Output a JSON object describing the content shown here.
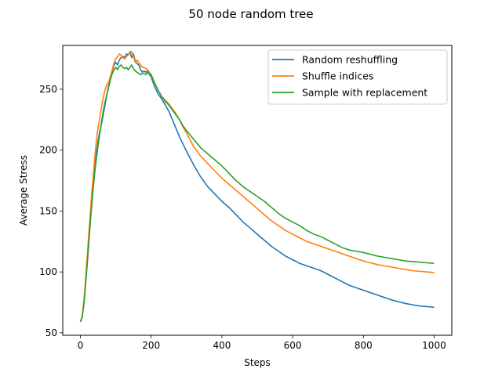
{
  "chart_data": {
    "type": "line",
    "title": "50 node random tree",
    "xlabel": "Steps",
    "ylabel": "Average Stress",
    "xlim": [
      -50,
      1050
    ],
    "ylim": [
      48,
      286
    ],
    "xticks": [
      0,
      200,
      400,
      600,
      800,
      1000
    ],
    "yticks": [
      50,
      100,
      150,
      200,
      250
    ],
    "grid": false,
    "legend_position": "top-right",
    "series": [
      {
        "name": "Random reshuffling",
        "color": "#1f77b4",
        "points": [
          [
            0,
            59
          ],
          [
            5,
            63
          ],
          [
            10,
            75
          ],
          [
            15,
            92
          ],
          [
            20,
            110
          ],
          [
            25,
            130
          ],
          [
            30,
            150
          ],
          [
            35,
            168
          ],
          [
            40,
            183
          ],
          [
            45,
            197
          ],
          [
            50,
            208
          ],
          [
            55,
            216
          ],
          [
            60,
            222
          ],
          [
            65,
            230
          ],
          [
            70,
            238
          ],
          [
            75,
            246
          ],
          [
            80,
            253
          ],
          [
            85,
            260
          ],
          [
            90,
            265
          ],
          [
            95,
            270
          ],
          [
            100,
            272
          ],
          [
            105,
            270
          ],
          [
            110,
            274
          ],
          [
            115,
            276
          ],
          [
            120,
            277
          ],
          [
            125,
            276
          ],
          [
            130,
            279
          ],
          [
            135,
            278
          ],
          [
            140,
            281
          ],
          [
            145,
            276
          ],
          [
            150,
            279
          ],
          [
            155,
            273
          ],
          [
            160,
            271
          ],
          [
            165,
            270
          ],
          [
            170,
            266
          ],
          [
            175,
            264
          ],
          [
            180,
            265
          ],
          [
            185,
            264
          ],
          [
            190,
            265
          ],
          [
            195,
            262
          ],
          [
            200,
            260
          ],
          [
            210,
            252
          ],
          [
            220,
            246
          ],
          [
            230,
            242
          ],
          [
            240,
            237
          ],
          [
            250,
            232
          ],
          [
            260,
            225
          ],
          [
            270,
            218
          ],
          [
            280,
            211
          ],
          [
            290,
            205
          ],
          [
            300,
            199
          ],
          [
            320,
            188
          ],
          [
            340,
            178
          ],
          [
            360,
            170
          ],
          [
            380,
            164
          ],
          [
            400,
            158
          ],
          [
            420,
            153
          ],
          [
            440,
            147
          ],
          [
            460,
            141
          ],
          [
            480,
            136
          ],
          [
            500,
            131
          ],
          [
            520,
            126
          ],
          [
            540,
            121
          ],
          [
            560,
            117
          ],
          [
            580,
            113
          ],
          [
            600,
            110
          ],
          [
            620,
            107
          ],
          [
            640,
            105
          ],
          [
            660,
            103
          ],
          [
            680,
            101
          ],
          [
            700,
            98
          ],
          [
            720,
            95
          ],
          [
            740,
            92
          ],
          [
            760,
            89
          ],
          [
            780,
            87
          ],
          [
            800,
            85
          ],
          [
            820,
            83
          ],
          [
            840,
            81
          ],
          [
            860,
            79
          ],
          [
            880,
            77
          ],
          [
            900,
            75.5
          ],
          [
            920,
            74
          ],
          [
            940,
            73
          ],
          [
            960,
            72
          ],
          [
            980,
            71.5
          ],
          [
            1000,
            71
          ]
        ]
      },
      {
        "name": "Shuffle indices",
        "color": "#ff7f0e",
        "points": [
          [
            0,
            59
          ],
          [
            5,
            64
          ],
          [
            10,
            77
          ],
          [
            15,
            96
          ],
          [
            20,
            116
          ],
          [
            25,
            137
          ],
          [
            30,
            157
          ],
          [
            35,
            175
          ],
          [
            40,
            192
          ],
          [
            45,
            208
          ],
          [
            50,
            219
          ],
          [
            55,
            227
          ],
          [
            60,
            236
          ],
          [
            65,
            244
          ],
          [
            70,
            250
          ],
          [
            75,
            254
          ],
          [
            80,
            256
          ],
          [
            85,
            261
          ],
          [
            90,
            266
          ],
          [
            95,
            272
          ],
          [
            100,
            275
          ],
          [
            105,
            277
          ],
          [
            110,
            279
          ],
          [
            115,
            278
          ],
          [
            120,
            276
          ],
          [
            125,
            275
          ],
          [
            130,
            277
          ],
          [
            135,
            278
          ],
          [
            140,
            281
          ],
          [
            145,
            281
          ],
          [
            150,
            277
          ],
          [
            155,
            272
          ],
          [
            160,
            274
          ],
          [
            165,
            272
          ],
          [
            170,
            270
          ],
          [
            175,
            268
          ],
          [
            180,
            268
          ],
          [
            185,
            267
          ],
          [
            190,
            266
          ],
          [
            195,
            264
          ],
          [
            200,
            261
          ],
          [
            210,
            255
          ],
          [
            220,
            249
          ],
          [
            230,
            244
          ],
          [
            240,
            241
          ],
          [
            250,
            238
          ],
          [
            260,
            234
          ],
          [
            270,
            230
          ],
          [
            280,
            225
          ],
          [
            290,
            219
          ],
          [
            300,
            214
          ],
          [
            320,
            203
          ],
          [
            340,
            195
          ],
          [
            360,
            189
          ],
          [
            380,
            183
          ],
          [
            400,
            177
          ],
          [
            420,
            172
          ],
          [
            440,
            167
          ],
          [
            460,
            162
          ],
          [
            480,
            157
          ],
          [
            500,
            152
          ],
          [
            520,
            147
          ],
          [
            540,
            142
          ],
          [
            560,
            138
          ],
          [
            580,
            134
          ],
          [
            600,
            131
          ],
          [
            620,
            128
          ],
          [
            640,
            125
          ],
          [
            660,
            123
          ],
          [
            680,
            121
          ],
          [
            700,
            119
          ],
          [
            720,
            117
          ],
          [
            740,
            115
          ],
          [
            760,
            113
          ],
          [
            780,
            111
          ],
          [
            800,
            109
          ],
          [
            820,
            107.5
          ],
          [
            840,
            106
          ],
          [
            860,
            105
          ],
          [
            880,
            104
          ],
          [
            900,
            103
          ],
          [
            920,
            102
          ],
          [
            940,
            101
          ],
          [
            960,
            100.5
          ],
          [
            980,
            100
          ],
          [
            1000,
            99.5
          ]
        ]
      },
      {
        "name": "Sample with replacement",
        "color": "#2ca02c",
        "points": [
          [
            0,
            59
          ],
          [
            5,
            63
          ],
          [
            10,
            74
          ],
          [
            15,
            91
          ],
          [
            20,
            110
          ],
          [
            25,
            129
          ],
          [
            30,
            148
          ],
          [
            35,
            165
          ],
          [
            40,
            180
          ],
          [
            45,
            193
          ],
          [
            50,
            204
          ],
          [
            55,
            214
          ],
          [
            60,
            224
          ],
          [
            65,
            233
          ],
          [
            70,
            240
          ],
          [
            75,
            246
          ],
          [
            80,
            252
          ],
          [
            85,
            258
          ],
          [
            90,
            263
          ],
          [
            95,
            266
          ],
          [
            100,
            268
          ],
          [
            105,
            266
          ],
          [
            110,
            269
          ],
          [
            115,
            270
          ],
          [
            120,
            268
          ],
          [
            125,
            267
          ],
          [
            130,
            268
          ],
          [
            135,
            266
          ],
          [
            140,
            268
          ],
          [
            145,
            270
          ],
          [
            150,
            267
          ],
          [
            155,
            265
          ],
          [
            160,
            264
          ],
          [
            165,
            263
          ],
          [
            170,
            262
          ],
          [
            175,
            263
          ],
          [
            180,
            263
          ],
          [
            185,
            262
          ],
          [
            190,
            264
          ],
          [
            195,
            263
          ],
          [
            200,
            262
          ],
          [
            210,
            255
          ],
          [
            220,
            249
          ],
          [
            230,
            244
          ],
          [
            240,
            240
          ],
          [
            250,
            237
          ],
          [
            260,
            233
          ],
          [
            270,
            229
          ],
          [
            280,
            225
          ],
          [
            290,
            220
          ],
          [
            300,
            216
          ],
          [
            320,
            209
          ],
          [
            340,
            202
          ],
          [
            360,
            197
          ],
          [
            380,
            192
          ],
          [
            400,
            187
          ],
          [
            420,
            181
          ],
          [
            440,
            175
          ],
          [
            460,
            170
          ],
          [
            480,
            166
          ],
          [
            500,
            162
          ],
          [
            520,
            158
          ],
          [
            540,
            153
          ],
          [
            560,
            148
          ],
          [
            580,
            144
          ],
          [
            600,
            141
          ],
          [
            620,
            138
          ],
          [
            640,
            134
          ],
          [
            660,
            131
          ],
          [
            680,
            129
          ],
          [
            700,
            126
          ],
          [
            720,
            123
          ],
          [
            740,
            120
          ],
          [
            760,
            118
          ],
          [
            780,
            117
          ],
          [
            800,
            116
          ],
          [
            820,
            114.5
          ],
          [
            840,
            113
          ],
          [
            860,
            112
          ],
          [
            880,
            111
          ],
          [
            900,
            110
          ],
          [
            920,
            109
          ],
          [
            940,
            108.5
          ],
          [
            960,
            108
          ],
          [
            980,
            107.5
          ],
          [
            1000,
            107
          ]
        ]
      }
    ]
  }
}
